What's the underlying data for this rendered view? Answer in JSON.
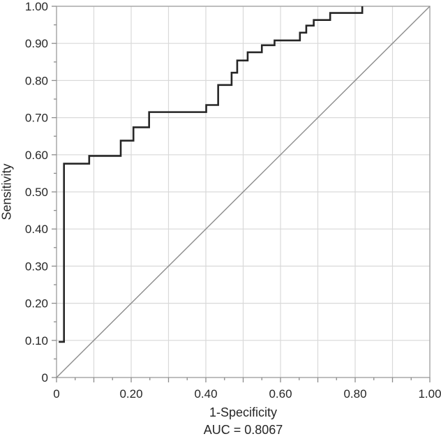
{
  "figure": {
    "y_axis_title": "Sensitivity",
    "x_axis_title": "1-Specificity",
    "auc_label": "AUC = 0.8067"
  },
  "chart_data": {
    "type": "line",
    "subtype": "roc-step-curve",
    "title": "",
    "xlabel": "1-Specificity",
    "ylabel": "Sensitivity",
    "xlim": [
      0,
      1
    ],
    "ylim": [
      0,
      1
    ],
    "grid": true,
    "grid_step": 0.1,
    "legend": "none",
    "auc": 0.8067,
    "annotation": "AUC = 0.8067",
    "x_ticks": {
      "values": [
        0,
        0.2,
        0.4,
        0.6,
        0.8,
        1.0
      ],
      "labels": [
        "0",
        "0.20",
        "0.40",
        "0.60",
        "0.80",
        "1.00"
      ],
      "minor_step": 0.05,
      "direction": "out"
    },
    "y_ticks": {
      "values": [
        0,
        0.1,
        0.2,
        0.3,
        0.4,
        0.5,
        0.6,
        0.7,
        0.8,
        0.9,
        1.0
      ],
      "labels": [
        "0",
        "0.10",
        "0.20",
        "0.30",
        "0.40",
        "0.50",
        "0.60",
        "0.70",
        "0.80",
        "0.90",
        "1.00"
      ],
      "minor_step": 0.05,
      "direction": "out"
    },
    "series": [
      {
        "name": "ROC curve",
        "color": "#262626",
        "points": [
          [
            0.006,
            0.096
          ],
          [
            0.02,
            0.096
          ],
          [
            0.02,
            0.576
          ],
          [
            0.0875,
            0.576
          ],
          [
            0.0875,
            0.597
          ],
          [
            0.172,
            0.597
          ],
          [
            0.172,
            0.638
          ],
          [
            0.206,
            0.638
          ],
          [
            0.206,
            0.674
          ],
          [
            0.248,
            0.674
          ],
          [
            0.248,
            0.715
          ],
          [
            0.401,
            0.715
          ],
          [
            0.401,
            0.734
          ],
          [
            0.433,
            0.734
          ],
          [
            0.433,
            0.788
          ],
          [
            0.469,
            0.788
          ],
          [
            0.469,
            0.821
          ],
          [
            0.484,
            0.821
          ],
          [
            0.484,
            0.854
          ],
          [
            0.512,
            0.854
          ],
          [
            0.512,
            0.876
          ],
          [
            0.55,
            0.876
          ],
          [
            0.55,
            0.895
          ],
          [
            0.584,
            0.895
          ],
          [
            0.584,
            0.908
          ],
          [
            0.652,
            0.908
          ],
          [
            0.652,
            0.929
          ],
          [
            0.669,
            0.929
          ],
          [
            0.669,
            0.948
          ],
          [
            0.689,
            0.948
          ],
          [
            0.689,
            0.963
          ],
          [
            0.733,
            0.963
          ],
          [
            0.733,
            0.982
          ],
          [
            0.819,
            0.982
          ],
          [
            0.819,
            1.0
          ]
        ]
      }
    ],
    "reference_line": {
      "name": "chance diagonal",
      "color": "#8c8c8c",
      "points": [
        [
          0,
          0
        ],
        [
          1,
          1
        ]
      ]
    },
    "colors": {
      "grid": "#d9d9d9",
      "frame": "#a3a3a3",
      "tick": "#8c8c8c",
      "text": "#262626",
      "background": "#ffffff"
    }
  }
}
